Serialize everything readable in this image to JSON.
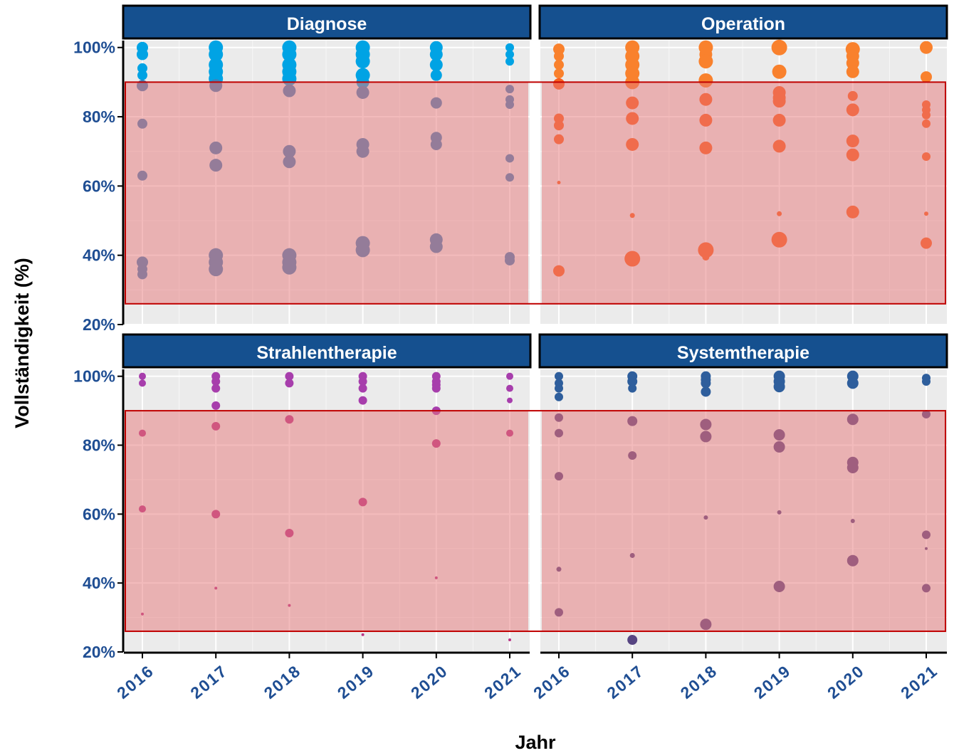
{
  "chart_data": {
    "type": "scatter",
    "xlabel": "Jahr",
    "ylabel": "Vollständigkeit (%)",
    "x_ticks": [
      "2016",
      "2017",
      "2018",
      "2019",
      "2020",
      "2021"
    ],
    "y_ticks": [
      "20%",
      "40%",
      "60%",
      "80%",
      "100%"
    ],
    "ylim": [
      20,
      102
    ],
    "highlight_band": {
      "from": 26,
      "to": 90,
      "color": "#e8787a"
    },
    "colors": {
      "strip": "#15508f",
      "panel_bg": "#ebebeb",
      "highlight_border": "#c00000",
      "tick_text": "#1f4e93"
    },
    "panels": [
      {
        "name": "Diagnose",
        "color_high": "#00a3e4",
        "color_low": "#4181b8",
        "points": [
          {
            "x": 2016,
            "y": 100,
            "s": 8
          },
          {
            "x": 2016,
            "y": 98,
            "s": 8
          },
          {
            "x": 2016,
            "y": 94,
            "s": 7
          },
          {
            "x": 2016,
            "y": 92,
            "s": 7
          },
          {
            "x": 2016,
            "y": 89,
            "s": 8
          },
          {
            "x": 2016,
            "y": 78,
            "s": 7
          },
          {
            "x": 2016,
            "y": 63,
            "s": 7
          },
          {
            "x": 2016,
            "y": 38,
            "s": 8
          },
          {
            "x": 2016,
            "y": 36,
            "s": 7
          },
          {
            "x": 2016,
            "y": 34.5,
            "s": 7
          },
          {
            "x": 2017,
            "y": 100,
            "s": 10
          },
          {
            "x": 2017,
            "y": 98,
            "s": 10
          },
          {
            "x": 2017,
            "y": 95,
            "s": 10
          },
          {
            "x": 2017,
            "y": 93,
            "s": 10
          },
          {
            "x": 2017,
            "y": 91,
            "s": 10
          },
          {
            "x": 2017,
            "y": 89,
            "s": 9
          },
          {
            "x": 2017,
            "y": 71,
            "s": 9
          },
          {
            "x": 2017,
            "y": 66,
            "s": 9
          },
          {
            "x": 2017,
            "y": 40,
            "s": 10
          },
          {
            "x": 2017,
            "y": 38,
            "s": 10
          },
          {
            "x": 2017,
            "y": 36,
            "s": 10
          },
          {
            "x": 2018,
            "y": 100,
            "s": 10
          },
          {
            "x": 2018,
            "y": 98,
            "s": 10
          },
          {
            "x": 2018,
            "y": 95,
            "s": 10
          },
          {
            "x": 2018,
            "y": 93,
            "s": 10
          },
          {
            "x": 2018,
            "y": 91,
            "s": 10
          },
          {
            "x": 2018,
            "y": 87.5,
            "s": 9
          },
          {
            "x": 2018,
            "y": 70,
            "s": 9
          },
          {
            "x": 2018,
            "y": 67,
            "s": 9
          },
          {
            "x": 2018,
            "y": 40,
            "s": 10
          },
          {
            "x": 2018,
            "y": 38,
            "s": 10
          },
          {
            "x": 2018,
            "y": 36.5,
            "s": 10
          },
          {
            "x": 2019,
            "y": 100,
            "s": 10
          },
          {
            "x": 2019,
            "y": 98,
            "s": 10
          },
          {
            "x": 2019,
            "y": 96,
            "s": 10
          },
          {
            "x": 2019,
            "y": 92,
            "s": 10
          },
          {
            "x": 2019,
            "y": 90,
            "s": 9
          },
          {
            "x": 2019,
            "y": 87,
            "s": 9
          },
          {
            "x": 2019,
            "y": 72,
            "s": 9
          },
          {
            "x": 2019,
            "y": 70,
            "s": 9
          },
          {
            "x": 2019,
            "y": 43.5,
            "s": 10
          },
          {
            "x": 2019,
            "y": 41.5,
            "s": 10
          },
          {
            "x": 2020,
            "y": 100,
            "s": 9
          },
          {
            "x": 2020,
            "y": 98,
            "s": 9
          },
          {
            "x": 2020,
            "y": 95,
            "s": 9
          },
          {
            "x": 2020,
            "y": 92,
            "s": 8
          },
          {
            "x": 2020,
            "y": 84,
            "s": 8
          },
          {
            "x": 2020,
            "y": 74,
            "s": 8
          },
          {
            "x": 2020,
            "y": 72,
            "s": 8
          },
          {
            "x": 2020,
            "y": 44.5,
            "s": 9
          },
          {
            "x": 2020,
            "y": 42.5,
            "s": 9
          },
          {
            "x": 2021,
            "y": 100,
            "s": 6
          },
          {
            "x": 2021,
            "y": 98,
            "s": 6
          },
          {
            "x": 2021,
            "y": 96,
            "s": 6
          },
          {
            "x": 2021,
            "y": 88,
            "s": 6
          },
          {
            "x": 2021,
            "y": 85,
            "s": 6
          },
          {
            "x": 2021,
            "y": 83.5,
            "s": 6
          },
          {
            "x": 2021,
            "y": 68,
            "s": 6
          },
          {
            "x": 2021,
            "y": 62.5,
            "s": 6
          },
          {
            "x": 2021,
            "y": 39.5,
            "s": 7
          },
          {
            "x": 2021,
            "y": 38.5,
            "s": 7
          }
        ]
      },
      {
        "name": "Operation",
        "color_high": "#f9812d",
        "color_low": "#f8601f",
        "points": [
          {
            "x": 2016,
            "y": 99.5,
            "s": 8
          },
          {
            "x": 2016,
            "y": 97.5,
            "s": 7
          },
          {
            "x": 2016,
            "y": 95,
            "s": 7
          },
          {
            "x": 2016,
            "y": 92.5,
            "s": 7
          },
          {
            "x": 2016,
            "y": 89.5,
            "s": 8
          },
          {
            "x": 2016,
            "y": 79.5,
            "s": 7
          },
          {
            "x": 2016,
            "y": 77.5,
            "s": 7
          },
          {
            "x": 2016,
            "y": 73.5,
            "s": 7
          },
          {
            "x": 2016,
            "y": 61,
            "s": 2.5
          },
          {
            "x": 2016,
            "y": 35.5,
            "s": 8
          },
          {
            "x": 2017,
            "y": 100,
            "s": 10
          },
          {
            "x": 2017,
            "y": 97.5,
            "s": 10
          },
          {
            "x": 2017,
            "y": 95,
            "s": 10
          },
          {
            "x": 2017,
            "y": 92.5,
            "s": 10
          },
          {
            "x": 2017,
            "y": 90,
            "s": 10
          },
          {
            "x": 2017,
            "y": 84,
            "s": 9
          },
          {
            "x": 2017,
            "y": 79.5,
            "s": 9
          },
          {
            "x": 2017,
            "y": 72,
            "s": 9
          },
          {
            "x": 2017,
            "y": 51.5,
            "s": 3.5
          },
          {
            "x": 2017,
            "y": 39,
            "s": 11
          },
          {
            "x": 2018,
            "y": 100,
            "s": 10
          },
          {
            "x": 2018,
            "y": 98,
            "s": 9
          },
          {
            "x": 2018,
            "y": 96,
            "s": 10
          },
          {
            "x": 2018,
            "y": 90.5,
            "s": 10
          },
          {
            "x": 2018,
            "y": 85,
            "s": 9
          },
          {
            "x": 2018,
            "y": 79,
            "s": 9
          },
          {
            "x": 2018,
            "y": 71,
            "s": 9
          },
          {
            "x": 2018,
            "y": 41.5,
            "s": 11
          },
          {
            "x": 2018,
            "y": 39.5,
            "s": 5
          },
          {
            "x": 2019,
            "y": 100,
            "s": 11
          },
          {
            "x": 2019,
            "y": 93,
            "s": 10
          },
          {
            "x": 2019,
            "y": 87,
            "s": 9
          },
          {
            "x": 2019,
            "y": 85.5,
            "s": 9
          },
          {
            "x": 2019,
            "y": 84.5,
            "s": 9
          },
          {
            "x": 2019,
            "y": 79,
            "s": 9
          },
          {
            "x": 2019,
            "y": 71.5,
            "s": 9
          },
          {
            "x": 2019,
            "y": 52,
            "s": 3.5
          },
          {
            "x": 2019,
            "y": 44.5,
            "s": 11
          },
          {
            "x": 2020,
            "y": 99.5,
            "s": 10
          },
          {
            "x": 2020,
            "y": 97.5,
            "s": 9
          },
          {
            "x": 2020,
            "y": 95.5,
            "s": 9
          },
          {
            "x": 2020,
            "y": 93,
            "s": 9
          },
          {
            "x": 2020,
            "y": 86,
            "s": 7
          },
          {
            "x": 2020,
            "y": 82,
            "s": 9
          },
          {
            "x": 2020,
            "y": 73,
            "s": 9
          },
          {
            "x": 2020,
            "y": 69,
            "s": 9
          },
          {
            "x": 2020,
            "y": 52.5,
            "s": 9
          },
          {
            "x": 2021,
            "y": 100,
            "s": 9
          },
          {
            "x": 2021,
            "y": 91.5,
            "s": 8
          },
          {
            "x": 2021,
            "y": 83.5,
            "s": 6
          },
          {
            "x": 2021,
            "y": 82,
            "s": 6
          },
          {
            "x": 2021,
            "y": 80.5,
            "s": 6
          },
          {
            "x": 2021,
            "y": 78,
            "s": 6
          },
          {
            "x": 2021,
            "y": 68.5,
            "s": 6
          },
          {
            "x": 2021,
            "y": 52,
            "s": 3
          },
          {
            "x": 2021,
            "y": 43.5,
            "s": 8
          }
        ]
      },
      {
        "name": "Strahlentherapie",
        "color_high": "#a73eac",
        "color_low": "#b83585",
        "points": [
          {
            "x": 2016,
            "y": 100,
            "s": 5
          },
          {
            "x": 2016,
            "y": 98,
            "s": 5
          },
          {
            "x": 2016,
            "y": 83.5,
            "s": 5
          },
          {
            "x": 2016,
            "y": 61.5,
            "s": 5
          },
          {
            "x": 2016,
            "y": 31,
            "s": 2
          },
          {
            "x": 2017,
            "y": 100,
            "s": 6
          },
          {
            "x": 2017,
            "y": 98.5,
            "s": 6
          },
          {
            "x": 2017,
            "y": 96.5,
            "s": 6
          },
          {
            "x": 2017,
            "y": 91.5,
            "s": 6
          },
          {
            "x": 2017,
            "y": 85.5,
            "s": 6
          },
          {
            "x": 2017,
            "y": 60,
            "s": 6
          },
          {
            "x": 2017,
            "y": 38.5,
            "s": 2
          },
          {
            "x": 2018,
            "y": 100,
            "s": 6
          },
          {
            "x": 2018,
            "y": 98,
            "s": 6
          },
          {
            "x": 2018,
            "y": 87.5,
            "s": 6
          },
          {
            "x": 2018,
            "y": 54.5,
            "s": 6
          },
          {
            "x": 2018,
            "y": 33.5,
            "s": 2
          },
          {
            "x": 2019,
            "y": 100,
            "s": 6
          },
          {
            "x": 2019,
            "y": 98.5,
            "s": 6
          },
          {
            "x": 2019,
            "y": 96.5,
            "s": 6
          },
          {
            "x": 2019,
            "y": 93,
            "s": 6
          },
          {
            "x": 2019,
            "y": 63.5,
            "s": 6
          },
          {
            "x": 2019,
            "y": 25,
            "s": 2
          },
          {
            "x": 2020,
            "y": 100,
            "s": 6
          },
          {
            "x": 2020,
            "y": 98.5,
            "s": 6
          },
          {
            "x": 2020,
            "y": 97.5,
            "s": 6
          },
          {
            "x": 2020,
            "y": 96.5,
            "s": 6
          },
          {
            "x": 2020,
            "y": 90,
            "s": 6
          },
          {
            "x": 2020,
            "y": 80.5,
            "s": 6
          },
          {
            "x": 2020,
            "y": 41.5,
            "s": 2
          },
          {
            "x": 2021,
            "y": 100,
            "s": 5
          },
          {
            "x": 2021,
            "y": 96.5,
            "s": 5
          },
          {
            "x": 2021,
            "y": 93,
            "s": 4
          },
          {
            "x": 2021,
            "y": 83.5,
            "s": 5
          },
          {
            "x": 2021,
            "y": 23.5,
            "s": 2
          }
        ]
      },
      {
        "name": "Systemtherapie",
        "color_high": "#2e5e9c",
        "color_low": "#574582",
        "points": [
          {
            "x": 2016,
            "y": 100,
            "s": 6
          },
          {
            "x": 2016,
            "y": 98,
            "s": 6
          },
          {
            "x": 2016,
            "y": 96.5,
            "s": 6
          },
          {
            "x": 2016,
            "y": 94,
            "s": 6
          },
          {
            "x": 2016,
            "y": 88,
            "s": 6
          },
          {
            "x": 2016,
            "y": 83.5,
            "s": 6
          },
          {
            "x": 2016,
            "y": 71,
            "s": 6
          },
          {
            "x": 2016,
            "y": 44,
            "s": 3.5
          },
          {
            "x": 2016,
            "y": 31.5,
            "s": 6
          },
          {
            "x": 2017,
            "y": 100,
            "s": 7
          },
          {
            "x": 2017,
            "y": 98.5,
            "s": 7
          },
          {
            "x": 2017,
            "y": 96.5,
            "s": 6
          },
          {
            "x": 2017,
            "y": 87,
            "s": 7
          },
          {
            "x": 2017,
            "y": 77,
            "s": 6
          },
          {
            "x": 2017,
            "y": 48,
            "s": 3.5
          },
          {
            "x": 2017,
            "y": 23.5,
            "s": 7
          },
          {
            "x": 2018,
            "y": 100,
            "s": 7
          },
          {
            "x": 2018,
            "y": 99,
            "s": 7
          },
          {
            "x": 2018,
            "y": 98,
            "s": 7
          },
          {
            "x": 2018,
            "y": 95.5,
            "s": 7
          },
          {
            "x": 2018,
            "y": 86,
            "s": 8
          },
          {
            "x": 2018,
            "y": 82.5,
            "s": 8
          },
          {
            "x": 2018,
            "y": 59,
            "s": 3
          },
          {
            "x": 2018,
            "y": 28,
            "s": 8
          },
          {
            "x": 2019,
            "y": 100,
            "s": 8
          },
          {
            "x": 2019,
            "y": 98.5,
            "s": 8
          },
          {
            "x": 2019,
            "y": 97,
            "s": 8
          },
          {
            "x": 2019,
            "y": 83,
            "s": 8
          },
          {
            "x": 2019,
            "y": 79.5,
            "s": 8
          },
          {
            "x": 2019,
            "y": 60.5,
            "s": 3
          },
          {
            "x": 2019,
            "y": 39,
            "s": 8
          },
          {
            "x": 2020,
            "y": 100,
            "s": 8
          },
          {
            "x": 2020,
            "y": 98,
            "s": 8
          },
          {
            "x": 2020,
            "y": 87.5,
            "s": 8
          },
          {
            "x": 2020,
            "y": 75,
            "s": 8
          },
          {
            "x": 2020,
            "y": 73.5,
            "s": 8
          },
          {
            "x": 2020,
            "y": 58,
            "s": 3
          },
          {
            "x": 2020,
            "y": 46.5,
            "s": 8
          },
          {
            "x": 2021,
            "y": 99.5,
            "s": 6
          },
          {
            "x": 2021,
            "y": 98.5,
            "s": 6
          },
          {
            "x": 2021,
            "y": 89,
            "s": 6
          },
          {
            "x": 2021,
            "y": 54,
            "s": 6
          },
          {
            "x": 2021,
            "y": 50,
            "s": 2
          },
          {
            "x": 2021,
            "y": 38.5,
            "s": 6
          }
        ]
      }
    ]
  }
}
